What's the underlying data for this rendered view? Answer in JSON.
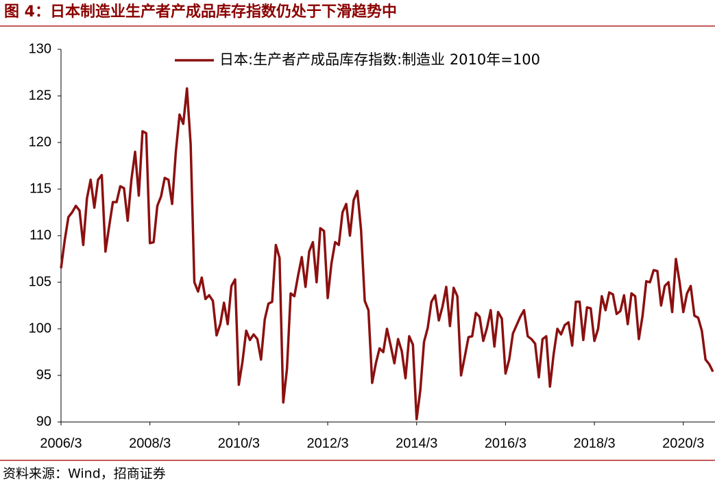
{
  "chart_data": {
    "type": "line",
    "title": "图 4：日本制造业生产者产成品库存指数仍处于下滑趋势中",
    "source": "资料来源：Wind，招商证券",
    "categories": [
      "2006/3",
      null,
      null,
      null,
      null,
      null,
      null,
      null,
      null,
      null,
      null,
      null,
      null,
      null,
      null,
      null,
      null,
      null,
      null,
      null,
      null,
      null,
      null,
      null,
      "2008/3",
      null,
      null,
      null,
      null,
      null,
      null,
      null,
      null,
      null,
      null,
      null,
      null,
      null,
      null,
      null,
      null,
      null,
      null,
      null,
      null,
      null,
      null,
      null,
      "2010/3",
      null,
      null,
      null,
      null,
      null,
      null,
      null,
      null,
      null,
      null,
      null,
      null,
      null,
      null,
      null,
      null,
      null,
      null,
      null,
      null,
      null,
      null,
      null,
      "2012/3",
      null,
      null,
      null,
      null,
      null,
      null,
      null,
      null,
      null,
      null,
      null,
      null,
      null,
      null,
      null,
      null,
      null,
      null,
      null,
      null,
      null,
      null,
      null,
      "2014/3",
      null,
      null,
      null,
      null,
      null,
      null,
      null,
      null,
      null,
      null,
      null,
      null,
      null,
      null,
      null,
      null,
      null,
      null,
      null,
      null,
      null,
      null,
      null,
      "2016/3",
      null,
      null,
      null,
      null,
      null,
      null,
      null,
      null,
      null,
      null,
      null,
      null,
      null,
      null,
      null,
      null,
      null,
      null,
      null,
      null,
      null,
      null,
      null,
      "2018/3",
      null,
      null,
      null,
      null,
      null,
      null,
      null,
      null,
      null,
      null,
      null,
      null,
      null,
      null,
      null,
      null,
      null,
      null,
      null,
      null,
      null,
      null,
      null,
      "2020/3",
      null,
      null,
      null,
      null,
      null,
      null,
      null,
      null
    ],
    "series": [
      {
        "name": "日本:生产者产成品库存指数:制造业 2010年=100",
        "color": "#8b1010",
        "values": [
          106.5,
          109.5,
          112,
          112.5,
          113.2,
          112.7,
          109,
          114,
          116,
          113,
          116,
          116.5,
          108.3,
          111,
          113.6,
          113.6,
          115.3,
          115.1,
          111.6,
          116,
          119,
          114.3,
          121.2,
          121,
          109.2,
          109.3,
          113.2,
          114.2,
          116.2,
          116,
          113.4,
          119,
          123,
          122,
          125.8,
          119.8,
          105,
          104,
          105.5,
          103.2,
          103.6,
          103,
          99.3,
          100.5,
          102.8,
          100.5,
          104.6,
          105.3,
          94,
          96.5,
          99.8,
          98.8,
          99.4,
          98.9,
          96.7,
          101,
          102.7,
          102.9,
          109,
          107.6,
          92.1,
          95.7,
          103.8,
          103.5,
          105.7,
          107.7,
          104.5,
          108.3,
          109.3,
          105,
          110.8,
          110.5,
          103.3,
          107,
          109.3,
          109,
          112.5,
          113.4,
          110,
          113.8,
          114.8,
          110.6,
          103,
          102,
          94.2,
          96.3,
          97.9,
          97.5,
          100,
          98.2,
          96.3,
          98.9,
          97.6,
          94.7,
          99.2,
          98.3,
          90.3,
          93.4,
          98.6,
          100.1,
          102.9,
          103.6,
          100.9,
          102.4,
          104.5,
          100.3,
          104.4,
          103.5,
          95,
          97,
          99.1,
          99.2,
          101.7,
          101.3,
          98.7,
          100.1,
          102,
          98.1,
          101.8,
          101.1,
          95.2,
          96.7,
          99.5,
          100.4,
          101.3,
          102,
          99.2,
          98.9,
          98.4,
          94.8,
          98.9,
          99.2,
          93.8,
          97.3,
          100,
          99.4,
          100.4,
          100.7,
          98.2,
          102.9,
          102.9,
          98.8,
          102.3,
          102.2,
          98.7,
          100,
          103.5,
          102,
          103.9,
          103.7,
          101.6,
          101.9,
          103.6,
          100.5,
          103.8,
          103.5,
          98.9,
          101.4,
          105.1,
          105,
          106.3,
          106.2,
          102.5,
          104.6,
          105,
          101.8,
          107.5,
          105,
          101.8,
          103.8,
          104.6,
          101.4,
          101.2,
          99.8,
          96.7,
          96.2,
          95.4
        ]
      }
    ],
    "ylim": [
      90,
      130
    ],
    "yticks": [
      90,
      95,
      100,
      105,
      110,
      115,
      120,
      125,
      130
    ],
    "legend": "top"
  }
}
